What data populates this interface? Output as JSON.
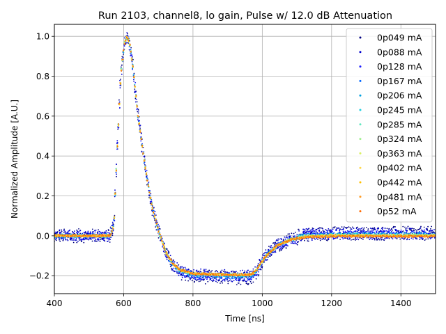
{
  "chart_data": {
    "type": "scatter",
    "title": "Run 2103, channel8, lo gain, Pulse w/ 12.0 dB Attenuation",
    "xlabel": "Time [ns]",
    "ylabel": "Normalized Amplitude [A.U.]",
    "xlim": [
      400,
      1500
    ],
    "ylim": [
      -0.29,
      1.06
    ],
    "xticks": [
      400,
      600,
      800,
      1000,
      1200,
      1400
    ],
    "yticks": [
      -0.2,
      0.0,
      0.2,
      0.4,
      0.6,
      0.8,
      1.0
    ],
    "xtick_labels": [
      "400",
      "600",
      "800",
      "1000",
      "1200",
      "1400"
    ],
    "ytick_labels": [
      "−0.2",
      "0.0",
      "0.2",
      "0.4",
      "0.6",
      "0.8",
      "1.0"
    ],
    "grid": true,
    "legend_position": "top-right",
    "waveform_points": [
      [
        400,
        0.0
      ],
      [
        560,
        0.0
      ],
      [
        570,
        0.05
      ],
      [
        580,
        0.45
      ],
      [
        590,
        0.8
      ],
      [
        600,
        0.96
      ],
      [
        608,
        1.0
      ],
      [
        615,
        0.97
      ],
      [
        625,
        0.85
      ],
      [
        640,
        0.6
      ],
      [
        660,
        0.35
      ],
      [
        680,
        0.15
      ],
      [
        700,
        0.02
      ],
      [
        720,
        -0.08
      ],
      [
        740,
        -0.14
      ],
      [
        760,
        -0.17
      ],
      [
        800,
        -0.19
      ],
      [
        900,
        -0.195
      ],
      [
        960,
        -0.195
      ],
      [
        975,
        -0.185
      ],
      [
        990,
        -0.15
      ],
      [
        1010,
        -0.1
      ],
      [
        1040,
        -0.05
      ],
      [
        1080,
        -0.02
      ],
      [
        1120,
        -0.005
      ],
      [
        1200,
        0.0
      ],
      [
        1500,
        0.0
      ]
    ],
    "series": [
      {
        "name": "0p049 mA",
        "color": "#000080",
        "noise": 0.035,
        "undershoot": 0.21,
        "recovery": 0.012
      },
      {
        "name": "0p088 mA",
        "color": "#0000cd",
        "noise": 0.03,
        "undershoot": 0.2,
        "recovery": 0.01
      },
      {
        "name": "0p128 mA",
        "color": "#1a1aff",
        "noise": 0.02,
        "undershoot": 0.205,
        "recovery": 0.008
      },
      {
        "name": "0p167 mA",
        "color": "#0066ff",
        "noise": 0.012,
        "undershoot": 0.205,
        "recovery": 0.006
      },
      {
        "name": "0p206 mA",
        "color": "#00a0e0",
        "noise": 0.01,
        "undershoot": 0.2,
        "recovery": 0.006
      },
      {
        "name": "0p245 mA",
        "color": "#20d0e0",
        "noise": 0.008,
        "undershoot": 0.2,
        "recovery": 0.005
      },
      {
        "name": "0p285 mA",
        "color": "#60e8c0",
        "noise": 0.006,
        "undershoot": 0.195,
        "recovery": 0.004
      },
      {
        "name": "0p324 mA",
        "color": "#a0f090",
        "noise": 0.006,
        "undershoot": 0.195,
        "recovery": 0.003
      },
      {
        "name": "0p363 mA",
        "color": "#d8f060",
        "noise": 0.006,
        "undershoot": 0.195,
        "recovery": 0.002
      },
      {
        "name": "0p402 mA",
        "color": "#ffd84a",
        "noise": 0.006,
        "undershoot": 0.195,
        "recovery": 0.0
      },
      {
        "name": "0p442 mA",
        "color": "#ffc000",
        "noise": 0.006,
        "undershoot": 0.195,
        "recovery": 0.0
      },
      {
        "name": "0p481 mA",
        "color": "#ff9a20",
        "noise": 0.006,
        "undershoot": 0.195,
        "recovery": -0.002
      },
      {
        "name": "0p52 mA",
        "color": "#ff6a00",
        "noise": 0.006,
        "undershoot": 0.195,
        "recovery": -0.003
      }
    ]
  }
}
